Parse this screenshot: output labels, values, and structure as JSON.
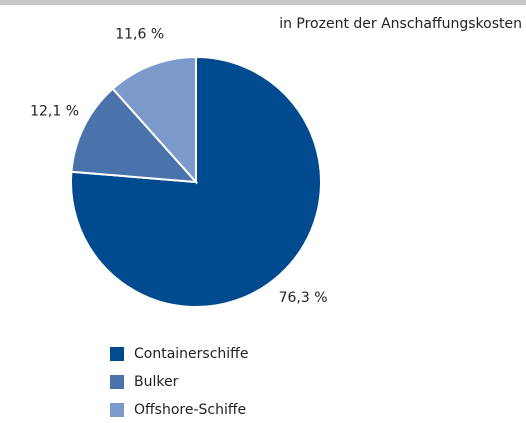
{
  "chart_data": {
    "type": "pie",
    "subtitle": "in Prozent der Anschaffungskosten",
    "categories": [
      "Containerschiffe",
      "Bulker",
      "Offshore-Schiffe"
    ],
    "values": [
      76.3,
      12.1,
      11.6
    ],
    "value_labels": [
      "76,3 %",
      "12,1 %",
      "11,6 %"
    ],
    "colors": [
      "#004a8f",
      "#4a73ab",
      "#7b9acb"
    ]
  }
}
